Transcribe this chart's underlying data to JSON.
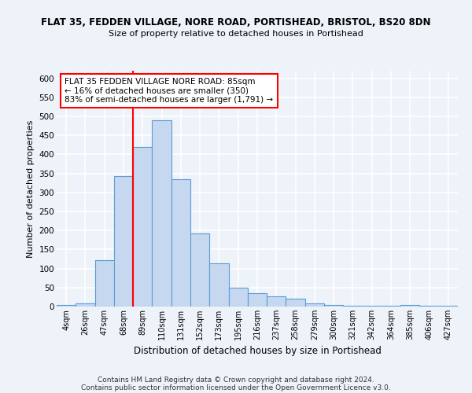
{
  "title_line1": "FLAT 35, FEDDEN VILLAGE, NORE ROAD, PORTISHEAD, BRISTOL, BS20 8DN",
  "title_line2": "Size of property relative to detached houses in Portishead",
  "xlabel": "Distribution of detached houses by size in Portishead",
  "ylabel": "Number of detached properties",
  "bar_color": "#c5d8f0",
  "bar_edge_color": "#5b9bd5",
  "categories": [
    "4sqm",
    "26sqm",
    "47sqm",
    "68sqm",
    "89sqm",
    "110sqm",
    "131sqm",
    "152sqm",
    "173sqm",
    "195sqm",
    "216sqm",
    "237sqm",
    "258sqm",
    "279sqm",
    "300sqm",
    "321sqm",
    "342sqm",
    "364sqm",
    "385sqm",
    "406sqm",
    "427sqm"
  ],
  "values": [
    5,
    8,
    122,
    344,
    420,
    490,
    335,
    193,
    113,
    50,
    35,
    27,
    20,
    9,
    5,
    3,
    3,
    2,
    5,
    3,
    3
  ],
  "ylim": [
    0,
    620
  ],
  "yticks": [
    0,
    50,
    100,
    150,
    200,
    250,
    300,
    350,
    400,
    450,
    500,
    550,
    600
  ],
  "red_line_index": 4,
  "annotation_text": "FLAT 35 FEDDEN VILLAGE NORE ROAD: 85sqm\n← 16% of detached houses are smaller (350)\n83% of semi-detached houses are larger (1,791) →",
  "annotation_box_color": "white",
  "annotation_box_edge_color": "red",
  "footer_line1": "Contains HM Land Registry data © Crown copyright and database right 2024.",
  "footer_line2": "Contains public sector information licensed under the Open Government Licence v3.0.",
  "background_color": "#eef2f9",
  "grid_color": "white"
}
